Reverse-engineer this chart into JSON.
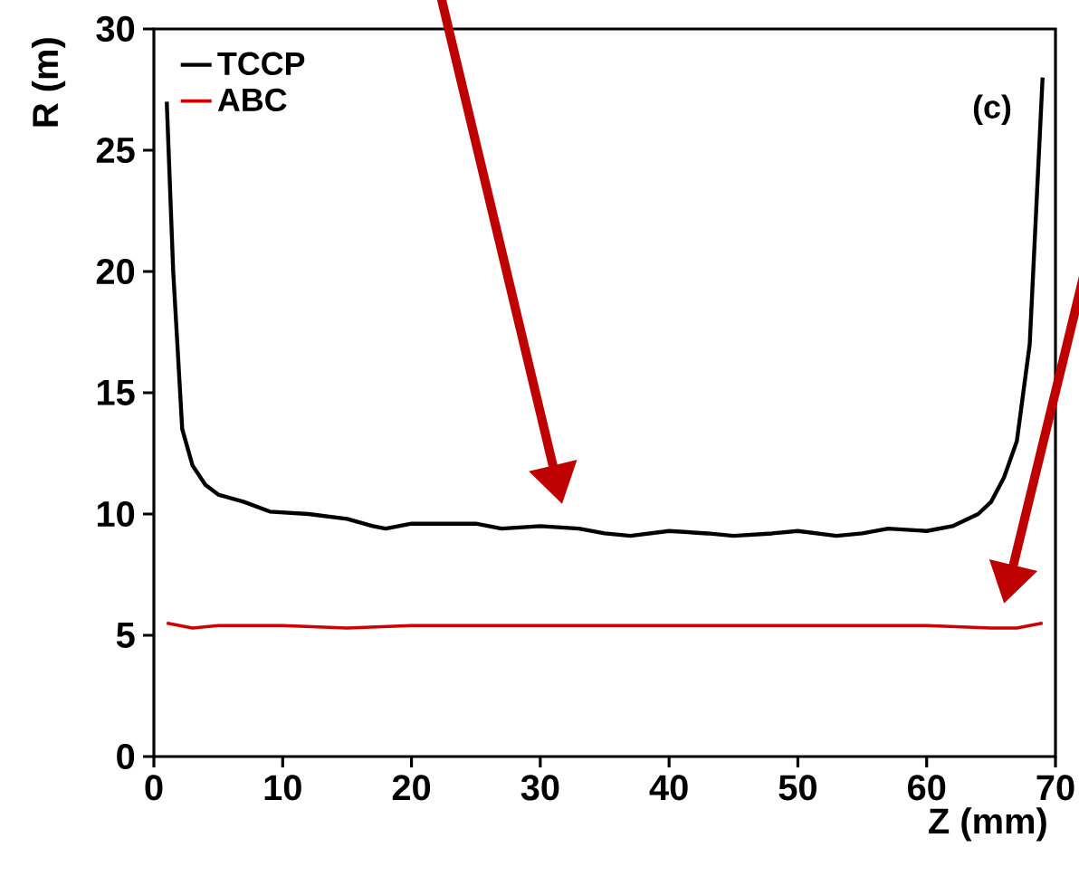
{
  "chart_data": {
    "type": "line",
    "xlabel": "Z (mm)",
    "ylabel": "R (m)",
    "annotations": [
      "(c)"
    ],
    "xlim": [
      0,
      70
    ],
    "ylim": [
      0,
      30
    ],
    "xticks": [
      0,
      10,
      20,
      30,
      40,
      50,
      60,
      70
    ],
    "yticks": [
      0,
      5,
      10,
      15,
      20,
      25,
      30
    ],
    "legend": "top left",
    "marker": "none",
    "line_style": "solid",
    "series": [
      {
        "name": "TCCP",
        "color": "#000000",
        "x": [
          1,
          1.5,
          2.2,
          3,
          4,
          5,
          7,
          9,
          12,
          15,
          17,
          18,
          20,
          22,
          25,
          27,
          30,
          33,
          35,
          37,
          40,
          43,
          45,
          48,
          50,
          53,
          55,
          57,
          60,
          62,
          64,
          65,
          66,
          67,
          68,
          69
        ],
        "values": [
          27,
          20,
          13.5,
          12,
          11.2,
          10.8,
          10.5,
          10.1,
          10,
          9.8,
          9.5,
          9.4,
          9.6,
          9.6,
          9.6,
          9.4,
          9.5,
          9.4,
          9.2,
          9.1,
          9.3,
          9.2,
          9.1,
          9.2,
          9.3,
          9.1,
          9.2,
          9.4,
          9.3,
          9.5,
          10,
          10.5,
          11.5,
          13,
          17,
          28
        ]
      },
      {
        "name": "ABC",
        "color": "#cc0000",
        "x": [
          1,
          3,
          5,
          10,
          15,
          20,
          30,
          40,
          50,
          60,
          65,
          67,
          69
        ],
        "values": [
          5.5,
          5.3,
          5.4,
          5.4,
          5.3,
          5.4,
          5.4,
          5.4,
          5.4,
          5.4,
          5.3,
          5.3,
          5.5
        ]
      }
    ]
  }
}
